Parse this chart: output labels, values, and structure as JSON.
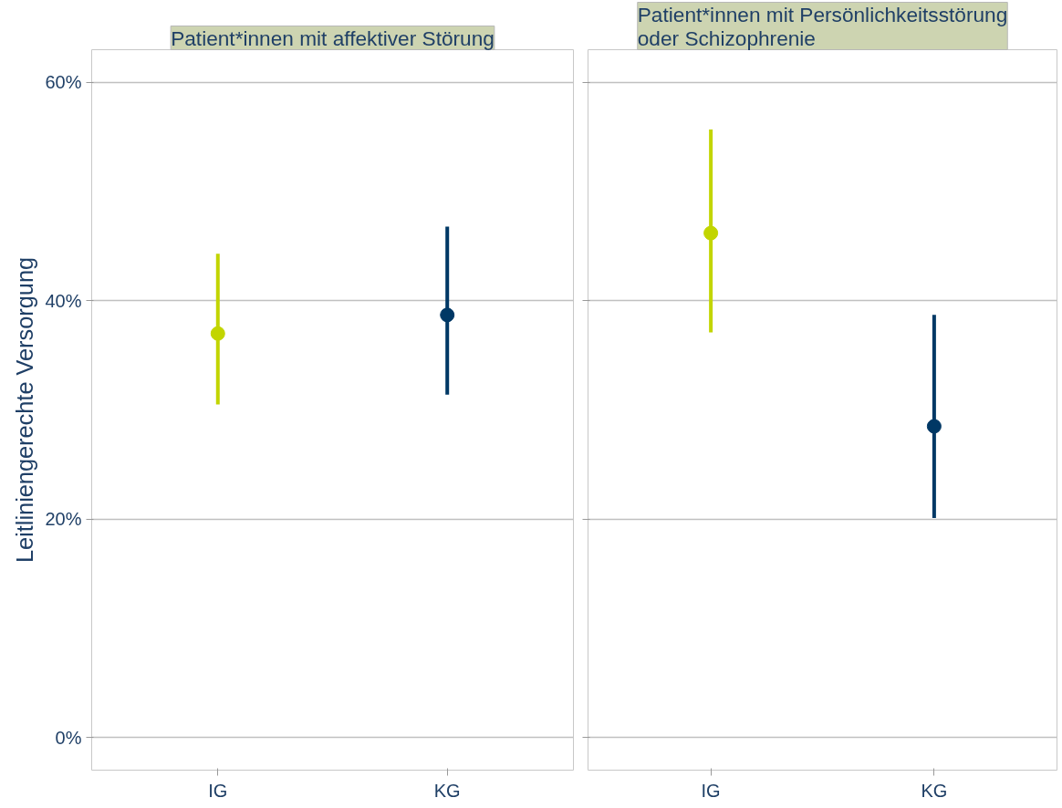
{
  "chart_data": [
    {
      "type": "scatter",
      "title": "Patient*innen mit affektiver Störung",
      "ylabel": "Leitliniengerechte Versorgung",
      "categories": [
        "IG",
        "KG"
      ],
      "values": [
        37.0,
        38.7
      ],
      "colors": [
        "#c2d500",
        "#003865"
      ],
      "errors": [
        [
          30.5,
          44.3
        ],
        [
          31.4,
          46.8
        ]
      ],
      "ylim": [
        -3,
        63
      ],
      "yticks": [
        {
          "value": 0,
          "label": "0%"
        },
        {
          "value": 20,
          "label": "20%"
        },
        {
          "value": 40,
          "label": "40%"
        },
        {
          "value": 60,
          "label": "60%"
        }
      ],
      "grid": "y",
      "marker": "circle"
    },
    {
      "type": "scatter",
      "title": "Patient*innen mit Persönlichkeitsstörung oder Schizophrenie",
      "categories": [
        "IG",
        "KG"
      ],
      "values": [
        46.2,
        28.5
      ],
      "colors": [
        "#c2d500",
        "#003865"
      ],
      "errors": [
        [
          37.1,
          55.7
        ],
        [
          20.1,
          38.7
        ]
      ],
      "ylim": [
        -3,
        63
      ],
      "yticks": [
        0,
        20,
        40,
        60
      ],
      "grid": "y",
      "marker": "circle",
      "tick_labels": "x"
    }
  ]
}
